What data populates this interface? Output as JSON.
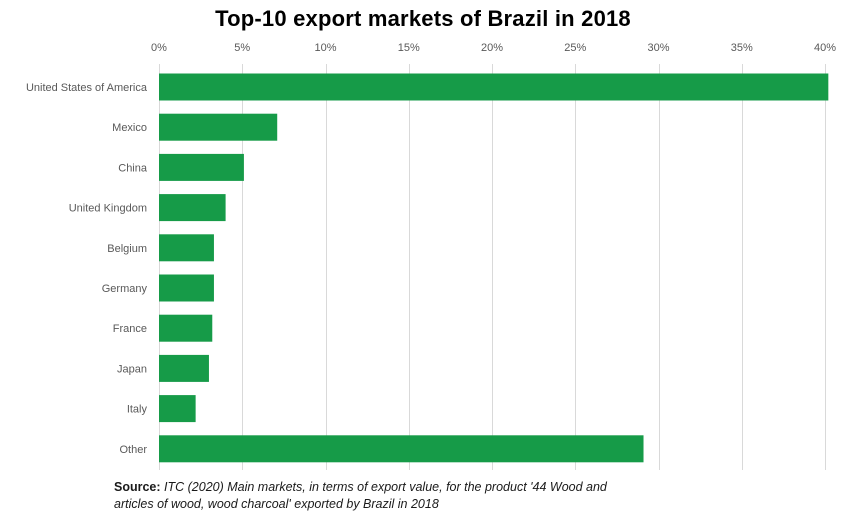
{
  "chart_data": {
    "type": "bar",
    "orientation": "horizontal",
    "title": "Top-10 export markets of Brazil in 2018",
    "categories": [
      "United States of America",
      "Mexico",
      "China",
      "United Kingdom",
      "Belgium",
      "Germany",
      "France",
      "Japan",
      "Italy",
      "Other"
    ],
    "values": [
      40.2,
      7.1,
      5.1,
      4.0,
      3.3,
      3.3,
      3.2,
      3.0,
      2.2,
      29.1
    ],
    "value_unit": "%",
    "xlim": [
      0,
      40
    ],
    "x_ticks": [
      "0%",
      "5%",
      "10%",
      "15%",
      "20%",
      "25%",
      "30%",
      "35%",
      "40%"
    ],
    "x_tick_values": [
      0,
      5,
      10,
      15,
      20,
      25,
      30,
      35,
      40
    ],
    "x_axis_position": "top",
    "grid": true,
    "legend": "none",
    "bar_color": "#169b48",
    "grid_color": "#d9d9d9"
  },
  "source": {
    "label": "Source:",
    "line1": " ITC (2020) Main markets, in terms of export value, for the product '44 Wood and",
    "line2": "articles of wood, wood charcoal' exported by Brazil in 2018"
  }
}
